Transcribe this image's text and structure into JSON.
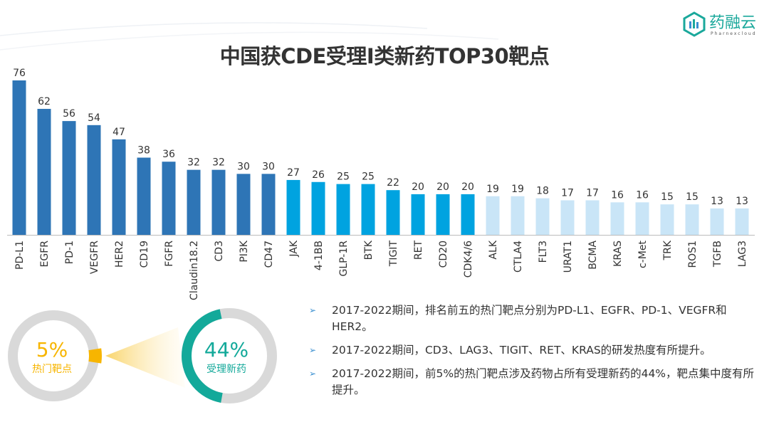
{
  "title": "中国获CDE受理I类新药TOP30靶点",
  "logo": {
    "name": "药融云",
    "sub": "Pharnexcloud"
  },
  "colors": {
    "tier1": "#2e75b6",
    "tier2": "#00a3e0",
    "tier3": "#c9e5f7",
    "teal": "#13a99a",
    "yellow": "#f7b500",
    "grey": "#d9d9d9"
  },
  "chart_data": {
    "type": "bar",
    "title": "中国获CDE受理I类新药TOP30靶点",
    "categories": [
      "PD-L1",
      "EGFR",
      "PD-1",
      "VEGFR",
      "HER2",
      "CD19",
      "FGFR",
      "Claudin18.2",
      "CD3",
      "PI3K",
      "CD47",
      "JAK",
      "4-1BB",
      "GLP-1R",
      "BTK",
      "TIGIT",
      "RET",
      "CD20",
      "CDK4/6",
      "ALK",
      "CTLA4",
      "FLT3",
      "URAT1",
      "BCMA",
      "KRAS",
      "c-Met",
      "TRK",
      "ROS1",
      "TGFB",
      "LAG3"
    ],
    "values": [
      76,
      62,
      56,
      54,
      47,
      38,
      36,
      32,
      32,
      30,
      30,
      27,
      26,
      25,
      25,
      22,
      20,
      20,
      20,
      19,
      19,
      18,
      17,
      17,
      16,
      16,
      15,
      15,
      13,
      13
    ],
    "ylim": [
      0,
      80
    ],
    "grid": false,
    "data_labels": true
  },
  "donuts": {
    "left": {
      "value": "5%",
      "label": "热门靶点",
      "fraction": 0.05
    },
    "right": {
      "value": "44%",
      "label": "受理新药",
      "fraction": 0.44
    }
  },
  "bullets": [
    "2017-2022期间，排名前五的热门靶点分别为PD-L1、EGFR、PD-1、VEGFR和HER2。",
    "2017-2022期间，CD3、LAG3、TIGIT、RET、KRAS的研发热度有所提升。",
    "2017-2022期间，前5%的热门靶点涉及药物占所有受理新药的44%，靶点集中度有所提升。"
  ],
  "bullet_icon": "chevron-right-icon"
}
